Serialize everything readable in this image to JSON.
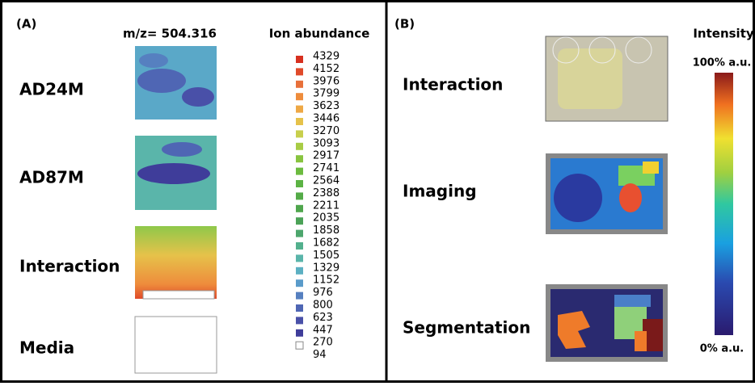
{
  "panel_a": {
    "tag": "(A)",
    "mz": "m/z= 504.316",
    "legend_title": "Ion abundance",
    "rows": [
      "AD24M",
      "AD87M",
      "Interaction",
      "Media"
    ],
    "levels": [
      4329,
      4152,
      3976,
      3799,
      3623,
      3446,
      3270,
      3093,
      2917,
      2741,
      2564,
      2388,
      2211,
      2035,
      1858,
      1682,
      1505,
      1329,
      1152,
      976,
      800,
      623,
      447,
      270,
      94
    ],
    "swatch_colors": [
      "#d7301f",
      "#e04a2a",
      "#e8703a",
      "#ee8c3c",
      "#eea845",
      "#e6c24a",
      "#c8cf4c",
      "#a8cc45",
      "#88c43f",
      "#6cbb3f",
      "#5cb344",
      "#54ab48",
      "#4fa64d",
      "#4ba257",
      "#4da66d",
      "#53b08d",
      "#5ab5aa",
      "#5cb0c2",
      "#5a9bca",
      "#5680c0",
      "#4f66b4",
      "#4950a8",
      "#3f3d9a",
      "#ffffff"
    ]
  },
  "panel_b": {
    "tag": "(B)",
    "legend_title": "Intensity",
    "max_label": "100% a.u.",
    "min_label": "0% a.u.",
    "rows": [
      "Interaction",
      "Imaging",
      "Segmentation"
    ]
  }
}
